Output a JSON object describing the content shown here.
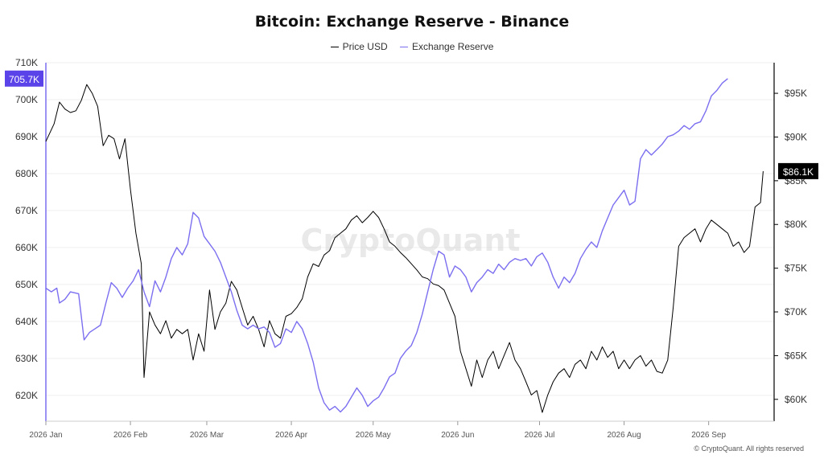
{
  "chart_data": {
    "type": "line",
    "title": "Bitcoin: Exchange Reserve - Binance",
    "x_ticks": [
      "2026 Jan",
      "2026 Feb",
      "2026 Mar",
      "2026 Apr",
      "2026 May",
      "2026 Jun",
      "2026 Jul",
      "2026 Aug",
      "2026 Sep"
    ],
    "left_axis": {
      "ticks": [
        "620K",
        "630K",
        "640K",
        "650K",
        "660K",
        "670K",
        "680K",
        "690K",
        "700K",
        "710K"
      ],
      "ylim": [
        613000,
        710000
      ]
    },
    "right_axis": {
      "ticks": [
        "$60K",
        "$65K",
        "$70K",
        "$75K",
        "$80K",
        "$85K",
        "$90K",
        "$95K"
      ],
      "ylim": [
        57500,
        98500
      ]
    },
    "legend_position": "top-center",
    "grid": "horizontal",
    "series": [
      {
        "name": "Price USD",
        "axis": "right",
        "color": "#000000",
        "current_label": "$86.1K",
        "points": [
          [
            "2026-01-01",
            89500
          ],
          [
            "2026-01-04",
            91500
          ],
          [
            "2026-01-06",
            94000
          ],
          [
            "2026-01-08",
            93200
          ],
          [
            "2026-01-10",
            92800
          ],
          [
            "2026-01-12",
            93000
          ],
          [
            "2026-01-14",
            94200
          ],
          [
            "2026-01-16",
            96000
          ],
          [
            "2026-01-18",
            95000
          ],
          [
            "2026-01-20",
            93500
          ],
          [
            "2026-01-22",
            89000
          ],
          [
            "2026-01-24",
            90200
          ],
          [
            "2026-01-26",
            89800
          ],
          [
            "2026-01-28",
            87500
          ],
          [
            "2026-01-30",
            89800
          ],
          [
            "2026-02-01",
            84000
          ],
          [
            "2026-02-03",
            79000
          ],
          [
            "2026-02-05",
            75500
          ],
          [
            "2026-02-06",
            62500
          ],
          [
            "2026-02-08",
            70000
          ],
          [
            "2026-02-10",
            68500
          ],
          [
            "2026-02-12",
            67500
          ],
          [
            "2026-02-14",
            69000
          ],
          [
            "2026-02-16",
            67000
          ],
          [
            "2026-02-18",
            68000
          ],
          [
            "2026-02-20",
            67500
          ],
          [
            "2026-02-22",
            68000
          ],
          [
            "2026-02-24",
            64500
          ],
          [
            "2026-02-26",
            67500
          ],
          [
            "2026-02-28",
            65500
          ],
          [
            "2026-03-02",
            72500
          ],
          [
            "2026-03-04",
            68000
          ],
          [
            "2026-03-06",
            70000
          ],
          [
            "2026-03-08",
            71000
          ],
          [
            "2026-03-10",
            73500
          ],
          [
            "2026-03-12",
            72500
          ],
          [
            "2026-03-14",
            70500
          ],
          [
            "2026-03-16",
            68500
          ],
          [
            "2026-03-18",
            69500
          ],
          [
            "2026-03-20",
            68000
          ],
          [
            "2026-03-22",
            66000
          ],
          [
            "2026-03-24",
            69000
          ],
          [
            "2026-03-26",
            67500
          ],
          [
            "2026-03-28",
            67000
          ],
          [
            "2026-03-30",
            69500
          ],
          [
            "2026-04-01",
            69800
          ],
          [
            "2026-04-03",
            70500
          ],
          [
            "2026-04-05",
            71500
          ],
          [
            "2026-04-07",
            74000
          ],
          [
            "2026-04-09",
            75500
          ],
          [
            "2026-04-11",
            75200
          ],
          [
            "2026-04-13",
            76500
          ],
          [
            "2026-04-15",
            77000
          ],
          [
            "2026-04-17",
            78500
          ],
          [
            "2026-04-19",
            79000
          ],
          [
            "2026-04-21",
            79500
          ],
          [
            "2026-04-23",
            80500
          ],
          [
            "2026-04-25",
            81000
          ],
          [
            "2026-04-27",
            80200
          ],
          [
            "2026-04-29",
            80800
          ],
          [
            "2026-05-01",
            81500
          ],
          [
            "2026-05-03",
            80800
          ],
          [
            "2026-05-05",
            79500
          ],
          [
            "2026-05-07",
            78000
          ],
          [
            "2026-05-09",
            77500
          ],
          [
            "2026-05-11",
            76800
          ],
          [
            "2026-05-13",
            76200
          ],
          [
            "2026-05-15",
            75500
          ],
          [
            "2026-05-17",
            74800
          ],
          [
            "2026-05-19",
            74000
          ],
          [
            "2026-05-21",
            73800
          ],
          [
            "2026-05-23",
            73200
          ],
          [
            "2026-05-25",
            73000
          ],
          [
            "2026-05-27",
            72500
          ],
          [
            "2026-05-29",
            71000
          ],
          [
            "2026-05-31",
            69500
          ],
          [
            "2026-06-02",
            65500
          ],
          [
            "2026-06-04",
            63500
          ],
          [
            "2026-06-06",
            61500
          ],
          [
            "2026-06-08",
            64500
          ],
          [
            "2026-06-10",
            62500
          ],
          [
            "2026-06-12",
            64500
          ],
          [
            "2026-06-14",
            65500
          ],
          [
            "2026-06-16",
            63500
          ],
          [
            "2026-06-18",
            65000
          ],
          [
            "2026-06-20",
            66500
          ],
          [
            "2026-06-22",
            64500
          ],
          [
            "2026-06-24",
            63500
          ],
          [
            "2026-06-26",
            62000
          ],
          [
            "2026-06-28",
            60500
          ],
          [
            "2026-06-30",
            61000
          ],
          [
            "2026-07-02",
            58500
          ],
          [
            "2026-07-04",
            60500
          ],
          [
            "2026-07-06",
            62000
          ],
          [
            "2026-07-08",
            63000
          ],
          [
            "2026-07-10",
            63500
          ],
          [
            "2026-07-12",
            62500
          ],
          [
            "2026-07-14",
            64000
          ],
          [
            "2026-07-16",
            64500
          ],
          [
            "2026-07-18",
            63500
          ],
          [
            "2026-07-20",
            65500
          ],
          [
            "2026-07-22",
            64500
          ],
          [
            "2026-07-24",
            66000
          ],
          [
            "2026-07-26",
            64800
          ],
          [
            "2026-07-28",
            65500
          ],
          [
            "2026-07-30",
            63500
          ],
          [
            "2026-08-01",
            64500
          ],
          [
            "2026-08-03",
            63500
          ],
          [
            "2026-08-05",
            64500
          ],
          [
            "2026-08-07",
            65000
          ],
          [
            "2026-08-09",
            63800
          ],
          [
            "2026-08-11",
            64500
          ],
          [
            "2026-08-13",
            63200
          ],
          [
            "2026-08-15",
            63000
          ],
          [
            "2026-08-17",
            64500
          ],
          [
            "2026-08-19",
            70500
          ],
          [
            "2026-08-21",
            77500
          ],
          [
            "2026-08-23",
            78500
          ],
          [
            "2026-08-25",
            79000
          ],
          [
            "2026-08-27",
            79500
          ],
          [
            "2026-08-29",
            78000
          ],
          [
            "2026-08-31",
            79500
          ],
          [
            "2026-09-02",
            80500
          ],
          [
            "2026-09-04",
            80000
          ],
          [
            "2026-09-06",
            79500
          ],
          [
            "2026-09-08",
            79000
          ],
          [
            "2026-09-10",
            77500
          ],
          [
            "2026-09-12",
            78000
          ],
          [
            "2026-09-14",
            76800
          ],
          [
            "2026-09-16",
            77500
          ],
          [
            "2026-09-18",
            82000
          ],
          [
            "2026-09-20",
            82500
          ],
          [
            "2026-09-21",
            86100
          ]
        ]
      },
      {
        "name": "Exchange Reserve",
        "axis": "left",
        "color": "#7b6ff0",
        "current_label": "705.7K",
        "points": [
          [
            "2026-01-01",
            649000
          ],
          [
            "2026-01-03",
            648000
          ],
          [
            "2026-01-05",
            649000
          ],
          [
            "2026-01-06",
            645000
          ],
          [
            "2026-01-08",
            646000
          ],
          [
            "2026-01-10",
            648000
          ],
          [
            "2026-01-13",
            647500
          ],
          [
            "2026-01-15",
            635000
          ],
          [
            "2026-01-17",
            637000
          ],
          [
            "2026-01-19",
            638000
          ],
          [
            "2026-01-21",
            639000
          ],
          [
            "2026-01-23",
            645000
          ],
          [
            "2026-01-25",
            650500
          ],
          [
            "2026-01-27",
            649000
          ],
          [
            "2026-01-29",
            646500
          ],
          [
            "2026-01-31",
            649000
          ],
          [
            "2026-02-02",
            651000
          ],
          [
            "2026-02-04",
            654000
          ],
          [
            "2026-02-06",
            648000
          ],
          [
            "2026-02-08",
            644000
          ],
          [
            "2026-02-10",
            651000
          ],
          [
            "2026-02-12",
            648000
          ],
          [
            "2026-02-14",
            652000
          ],
          [
            "2026-02-16",
            657000
          ],
          [
            "2026-02-18",
            660000
          ],
          [
            "2026-02-20",
            658000
          ],
          [
            "2026-02-22",
            661000
          ],
          [
            "2026-02-24",
            669500
          ],
          [
            "2026-02-26",
            668000
          ],
          [
            "2026-02-28",
            663000
          ],
          [
            "2026-03-02",
            661000
          ],
          [
            "2026-03-04",
            659000
          ],
          [
            "2026-03-06",
            656000
          ],
          [
            "2026-03-08",
            652000
          ],
          [
            "2026-03-10",
            648000
          ],
          [
            "2026-03-12",
            643000
          ],
          [
            "2026-03-14",
            639000
          ],
          [
            "2026-03-16",
            638000
          ],
          [
            "2026-03-18",
            639000
          ],
          [
            "2026-03-20",
            638000
          ],
          [
            "2026-03-22",
            638500
          ],
          [
            "2026-03-24",
            637000
          ],
          [
            "2026-03-26",
            633000
          ],
          [
            "2026-03-28",
            634000
          ],
          [
            "2026-03-30",
            638000
          ],
          [
            "2026-04-01",
            637000
          ],
          [
            "2026-04-03",
            640000
          ],
          [
            "2026-04-05",
            638000
          ],
          [
            "2026-04-07",
            634000
          ],
          [
            "2026-04-09",
            629000
          ],
          [
            "2026-04-11",
            622000
          ],
          [
            "2026-04-13",
            618000
          ],
          [
            "2026-04-15",
            616000
          ],
          [
            "2026-04-17",
            617000
          ],
          [
            "2026-04-19",
            615500
          ],
          [
            "2026-04-21",
            617000
          ],
          [
            "2026-04-23",
            619500
          ],
          [
            "2026-04-25",
            622000
          ],
          [
            "2026-04-27",
            620000
          ],
          [
            "2026-04-29",
            617000
          ],
          [
            "2026-05-01",
            618500
          ],
          [
            "2026-05-03",
            619500
          ],
          [
            "2026-05-05",
            622000
          ],
          [
            "2026-05-07",
            625000
          ],
          [
            "2026-05-09",
            626000
          ],
          [
            "2026-05-11",
            630000
          ],
          [
            "2026-05-13",
            632000
          ],
          [
            "2026-05-15",
            633500
          ],
          [
            "2026-05-17",
            637000
          ],
          [
            "2026-05-19",
            642000
          ],
          [
            "2026-05-21",
            648000
          ],
          [
            "2026-05-23",
            654000
          ],
          [
            "2026-05-25",
            659000
          ],
          [
            "2026-05-27",
            658000
          ],
          [
            "2026-05-29",
            652000
          ],
          [
            "2026-05-31",
            655000
          ],
          [
            "2026-06-02",
            654000
          ],
          [
            "2026-06-04",
            652000
          ],
          [
            "2026-06-06",
            648000
          ],
          [
            "2026-06-08",
            650500
          ],
          [
            "2026-06-10",
            652000
          ],
          [
            "2026-06-12",
            654000
          ],
          [
            "2026-06-14",
            653000
          ],
          [
            "2026-06-16",
            655500
          ],
          [
            "2026-06-18",
            654000
          ],
          [
            "2026-06-20",
            656000
          ],
          [
            "2026-06-22",
            657000
          ],
          [
            "2026-06-24",
            656500
          ],
          [
            "2026-06-26",
            657000
          ],
          [
            "2026-06-28",
            655000
          ],
          [
            "2026-06-30",
            657500
          ],
          [
            "2026-07-02",
            658500
          ],
          [
            "2026-07-04",
            656000
          ],
          [
            "2026-07-06",
            652000
          ],
          [
            "2026-07-08",
            649000
          ],
          [
            "2026-07-10",
            652000
          ],
          [
            "2026-07-12",
            650500
          ],
          [
            "2026-07-14",
            653000
          ],
          [
            "2026-07-16",
            657000
          ],
          [
            "2026-07-18",
            659500
          ],
          [
            "2026-07-20",
            661500
          ],
          [
            "2026-07-22",
            660000
          ],
          [
            "2026-07-24",
            664500
          ],
          [
            "2026-07-26",
            668000
          ],
          [
            "2026-07-28",
            671500
          ],
          [
            "2026-07-30",
            673500
          ],
          [
            "2026-08-01",
            675500
          ],
          [
            "2026-08-03",
            671500
          ],
          [
            "2026-08-05",
            672500
          ],
          [
            "2026-08-07",
            684000
          ],
          [
            "2026-08-09",
            686500
          ],
          [
            "2026-08-11",
            685000
          ],
          [
            "2026-08-13",
            686500
          ],
          [
            "2026-08-15",
            688000
          ],
          [
            "2026-08-17",
            690000
          ],
          [
            "2026-08-19",
            690500
          ],
          [
            "2026-08-21",
            691500
          ],
          [
            "2026-08-23",
            693000
          ],
          [
            "2026-08-25",
            692000
          ],
          [
            "2026-08-27",
            693500
          ],
          [
            "2026-08-29",
            694000
          ],
          [
            "2026-08-31",
            697000
          ],
          [
            "2026-09-02",
            701000
          ],
          [
            "2026-09-04",
            702500
          ],
          [
            "2026-09-06",
            704500
          ],
          [
            "2026-09-08",
            705700
          ]
        ]
      }
    ]
  },
  "copyright": "© CryptoQuant. All rights reserved",
  "watermark": "CryptoQuant"
}
